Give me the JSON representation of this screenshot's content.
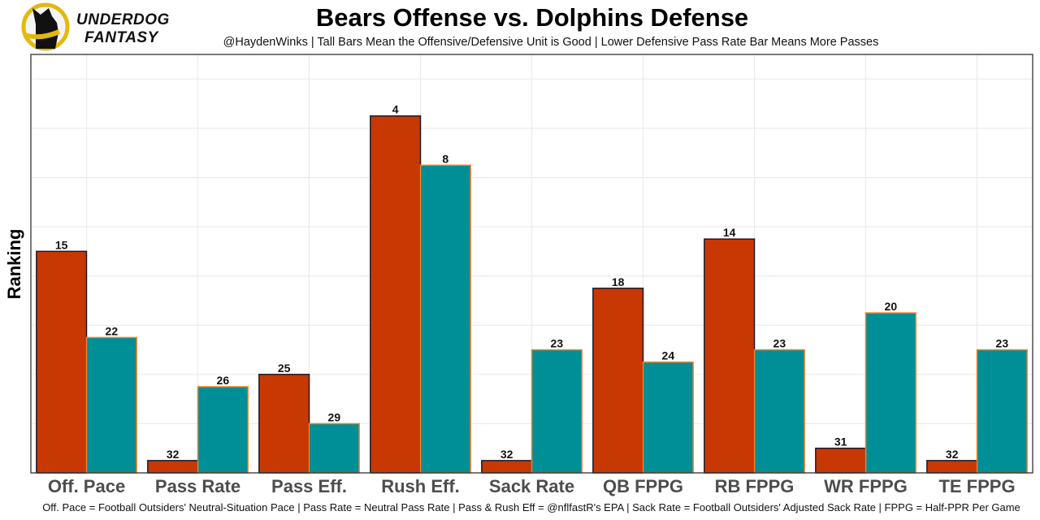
{
  "brand": {
    "logo_line1": "UNDERDOG",
    "logo_line2": "FANTASY",
    "ring_color": "#e2b90f"
  },
  "chart_data": {
    "type": "bar",
    "title": "Bears Offense vs. Dolphins Defense",
    "subtitle": "@HaydenWinks | Tall Bars Mean the Offensive/Defensive Unit is Good | Lower Defensive Pass Rate Bar Means More Passes",
    "caption": "Off. Pace = Football Outsiders' Neutral-Situation Pace | Pass Rate = Neutral Pass Rate | Pass & Rush Eff = @nflfastR's EPA | Sack Rate = Football Outsiders' Adjusted Sack Rate | FPPG = Half-PPR Per Game",
    "xlabel": "",
    "ylabel": "Ranking",
    "y_scale_note": "bar height = 33 - rank (rank 1 tallest)",
    "ylim": [
      0,
      34
    ],
    "grid": true,
    "legend": "none",
    "categories": [
      "Off. Pace",
      "Pass Rate",
      "Pass Eff.",
      "Rush Eff.",
      "Sack Rate",
      "QB FPPG",
      "RB FPPG",
      "WR FPPG",
      "TE FPPG"
    ],
    "series": [
      {
        "name": "Bears Offense",
        "color": "#c83803",
        "stroke": "#1a1a2e",
        "values": [
          15,
          32,
          25,
          4,
          32,
          18,
          14,
          31,
          32
        ]
      },
      {
        "name": "Dolphins Defense",
        "color": "#008e97",
        "stroke": "#f58220",
        "values": [
          22,
          26,
          29,
          8,
          23,
          24,
          23,
          20,
          23
        ]
      }
    ]
  }
}
